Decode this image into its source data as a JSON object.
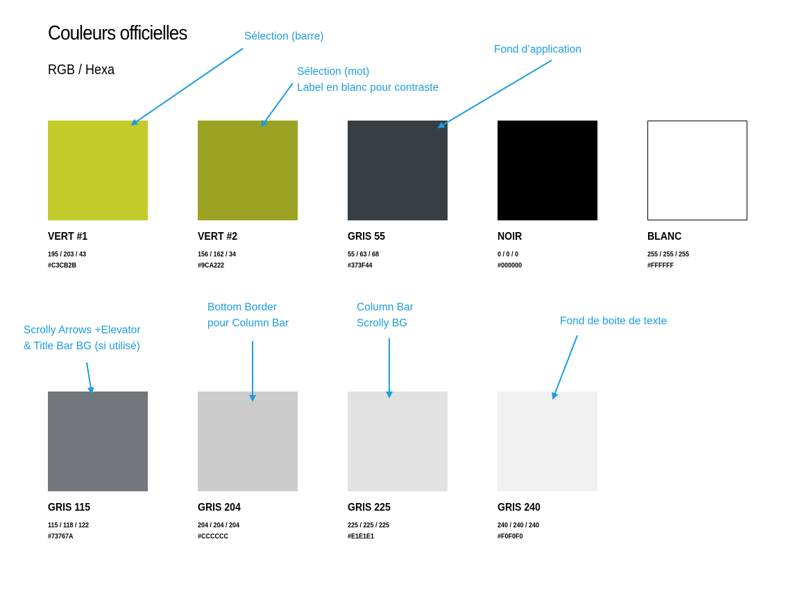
{
  "header": {
    "title": "Couleurs officielles",
    "subtitle": "RGB / Hexa"
  },
  "accent_color": "#1B9DDF",
  "swatches": [
    {
      "name": "VERT #1",
      "rgb": "195 / 203 / 43",
      "hex": "#C3CB2B",
      "color": "#C3CB2B"
    },
    {
      "name": "VERT #2",
      "rgb": "156 / 162 / 34",
      "hex": "#9CA222",
      "color": "#9CA222"
    },
    {
      "name": "GRIS 55",
      "rgb": "55 / 63 / 68",
      "hex": "#373F44",
      "color": "#373F44"
    },
    {
      "name": "NOIR",
      "rgb": "0 / 0 / 0",
      "hex": "#000000",
      "color": "#000000"
    },
    {
      "name": "BLANC",
      "rgb": "255 / 255 / 255",
      "hex": "#FFFFFF",
      "color": "#FFFFFF"
    },
    {
      "name": "GRIS 115",
      "rgb": "115 / 118 / 122",
      "hex": "#73767A",
      "color": "#73767A"
    },
    {
      "name": "GRIS 204",
      "rgb": "204 / 204 / 204",
      "hex": "#CCCCCC",
      "color": "#CCCCCC"
    },
    {
      "name": "GRIS 225",
      "rgb": "225 / 225 / 225",
      "hex": "#E1E1E1",
      "color": "#E1E1E1"
    },
    {
      "name": "GRIS 240",
      "rgb": "240 / 240 / 240",
      "hex": "#F0F0F0",
      "color": "#F0F0F0"
    }
  ],
  "annotations": [
    {
      "lines": [
        "Sélection (barre)"
      ]
    },
    {
      "lines": [
        "Sélection (mot)",
        "Label en blanc pour contraste"
      ]
    },
    {
      "lines": [
        "Fond d’application"
      ]
    },
    {
      "lines": [
        "Scrolly Arrows +Elevator",
        "& Title Bar BG (si utilisé)"
      ]
    },
    {
      "lines": [
        "Bottom Border",
        "pour Column Bar"
      ]
    },
    {
      "lines": [
        "Column Bar",
        "Scrolly BG"
      ]
    },
    {
      "lines": [
        "Fond de boite de texte"
      ]
    }
  ]
}
